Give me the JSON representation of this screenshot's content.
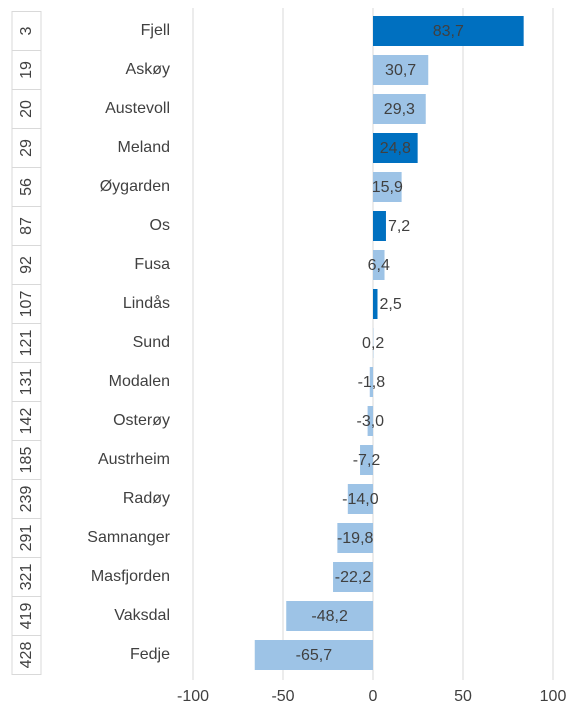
{
  "chart_data": {
    "type": "bar",
    "ranks": [
      3,
      19,
      20,
      29,
      56,
      87,
      92,
      107,
      121,
      131,
      142,
      185,
      239,
      291,
      321,
      419,
      428
    ],
    "categories": [
      "Fjell",
      "Askøy",
      "Austevoll",
      "Meland",
      "Øygarden",
      "Os",
      "Fusa",
      "Lindås",
      "Sund",
      "Modalen",
      "Osterøy",
      "Austrheim",
      "Radøy",
      "Samnanger",
      "Masfjorden",
      "Vaksdal",
      "Fedje"
    ],
    "values": [
      83.7,
      30.7,
      29.3,
      24.8,
      15.9,
      7.2,
      6.4,
      2.5,
      0.2,
      -1.8,
      -3.0,
      -7.2,
      -14.0,
      -19.8,
      -22.2,
      -48.2,
      -65.7
    ],
    "value_labels": [
      "83,7",
      "30,7",
      "29,3",
      "24,8",
      "15,9",
      "7,2",
      "6,4",
      "2,5",
      "0,2",
      "-1,8",
      "-3,0",
      "-7,2",
      "-14,0",
      "-19,8",
      "-22,2",
      "-48,2",
      "-65,7"
    ],
    "colors": [
      "#0070c0",
      "#9dc3e6",
      "#9dc3e6",
      "#0070c0",
      "#9dc3e6",
      "#0070c0",
      "#9dc3e6",
      "#0070c0",
      "#9dc3e6",
      "#9dc3e6",
      "#9dc3e6",
      "#9dc3e6",
      "#9dc3e6",
      "#9dc3e6",
      "#9dc3e6",
      "#9dc3e6",
      "#9dc3e6"
    ],
    "xlim": [
      -100,
      100
    ],
    "xticks": [
      -100,
      -50,
      0,
      50,
      100
    ],
    "grid": true
  }
}
